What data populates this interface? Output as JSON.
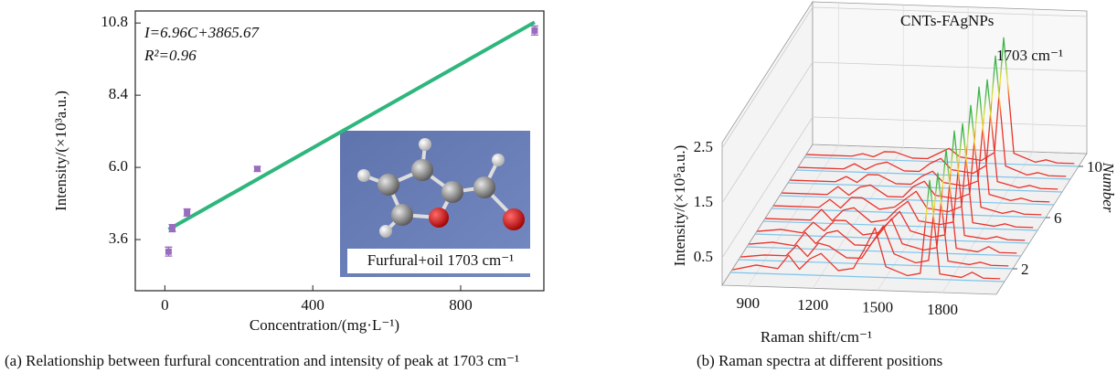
{
  "chart_data": [
    {
      "type": "scatter",
      "x": [
        10,
        20,
        60,
        250,
        1000
      ],
      "values": [
        3.2,
        3.98,
        4.5,
        5.95,
        10.55
      ],
      "errors": [
        0.15,
        0.12,
        0.12,
        0.08,
        0.15
      ],
      "color": "#9a6cc0",
      "fit": {
        "x": [
          10,
          1000
        ],
        "values": [
          3.935,
          10.826
        ],
        "color": "#2eb67d"
      },
      "xlim": [
        -80,
        1025
      ],
      "xticks": [
        0,
        400,
        800
      ],
      "ylim": [
        1.9,
        11.2
      ],
      "yticks": [
        3.6,
        {
          "value": 6,
          "label": "6.0"
        },
        8.4,
        10.8
      ],
      "xlabel": "Concentration/(mg·L⁻¹)",
      "ylabel": "Intensity/(×10³a.u.)",
      "annotations": [
        "I=6.96C+3865.67",
        "R²=0.96"
      ],
      "inset_label": "Furfural+oil 1703 cm⁻¹",
      "caption": "(a) Relationship between furfural concentration and intensity of peak at 1703 cm⁻¹"
    },
    {
      "type": "waterfall",
      "title": "CNTs-FAgNPs",
      "annotation": "1703 cm⁻¹",
      "x": [
        790,
        900,
        1000,
        1050,
        1100,
        1150,
        1200,
        1280,
        1350,
        1400,
        1450,
        1500,
        1600,
        1660,
        1703,
        1750,
        1850,
        1900,
        1950,
        2030
      ],
      "depth": [
        1,
        2,
        3,
        4,
        5,
        6,
        7,
        8,
        9,
        10
      ],
      "series": [
        {
          "values": [
            0.05,
            0.15,
            0.1,
            0.35,
            0.1,
            0.3,
            0.4,
            0.1,
            0.15,
            0.5,
            0.9,
            0.2,
            0.05,
            0.1,
            1.8,
            0.1,
            0.05,
            0.15,
            0.05,
            0.05
          ]
        },
        {
          "values": [
            0.05,
            0.1,
            0.1,
            0.3,
            0.1,
            0.35,
            0.3,
            0.1,
            0.1,
            0.4,
            0.7,
            0.2,
            0.05,
            0.1,
            1.7,
            0.1,
            0.05,
            0.1,
            0.05,
            0.05
          ]
        },
        {
          "values": [
            0.05,
            0.1,
            0.05,
            0.3,
            0.1,
            0.3,
            0.35,
            0.1,
            0.1,
            0.35,
            0.6,
            0.15,
            0.05,
            0.1,
            1.9,
            0.1,
            0.05,
            0.15,
            0.05,
            0.05
          ]
        },
        {
          "values": [
            0.05,
            0.1,
            0.05,
            0.25,
            0.1,
            0.3,
            0.3,
            0.05,
            0.1,
            0.3,
            0.5,
            0.15,
            0.05,
            0.1,
            2.0,
            0.1,
            0.05,
            0.1,
            0.05,
            0.05
          ]
        },
        {
          "values": [
            0.05,
            0.05,
            0.05,
            0.25,
            0.05,
            0.25,
            0.3,
            0.05,
            0.1,
            0.3,
            0.45,
            0.1,
            0.05,
            0.1,
            1.9,
            0.1,
            0.05,
            0.1,
            0.05,
            0.05
          ]
        },
        {
          "values": [
            0.05,
            0.05,
            0.05,
            0.2,
            0.05,
            0.25,
            0.25,
            0.05,
            0.1,
            0.25,
            0.4,
            0.1,
            0.05,
            0.15,
            2.0,
            0.15,
            0.05,
            0.1,
            0.05,
            0.05
          ]
        },
        {
          "values": [
            0.05,
            0.05,
            0.05,
            0.2,
            0.05,
            0.2,
            0.25,
            0.05,
            0.05,
            0.25,
            0.35,
            0.1,
            0.05,
            0.15,
            2.1,
            0.15,
            0.05,
            0.1,
            0.05,
            0.05
          ]
        },
        {
          "values": [
            0.05,
            0.05,
            0.05,
            0.15,
            0.05,
            0.2,
            0.2,
            0.05,
            0.05,
            0.2,
            0.3,
            0.1,
            0.05,
            0.15,
            2.0,
            0.15,
            0.05,
            0.1,
            0.05,
            0.05
          ]
        },
        {
          "values": [
            0.05,
            0.05,
            0.05,
            0.15,
            0.05,
            0.15,
            0.2,
            0.05,
            0.05,
            0.2,
            0.3,
            0.1,
            0.05,
            0.2,
            2.2,
            0.2,
            0.05,
            0.1,
            0.05,
            0.05
          ]
        },
        {
          "values": [
            0.05,
            0.05,
            0.05,
            0.1,
            0.05,
            0.15,
            0.15,
            0.05,
            0.05,
            0.15,
            0.25,
            0.1,
            0.05,
            0.2,
            2.3,
            0.2,
            0.05,
            0.1,
            0.05,
            0.05
          ]
        }
      ],
      "color": "#e8342c",
      "peak_color": "#3fb44a",
      "baseline_color": "#7fc4ea",
      "xlim": [
        780,
        2050
      ],
      "xticks": [
        900,
        1200,
        1500,
        1800
      ],
      "zlim": [
        0,
        2.6
      ],
      "zticks": [
        0.5,
        1.5,
        2.5
      ],
      "depthlim": [
        0,
        11
      ],
      "depthticks": [
        2,
        6,
        10
      ],
      "xlabel": "Raman shift/cm⁻¹",
      "zlabel": "Intensity/(×10⁵a.u.)",
      "depthlabel": "Number",
      "caption": "(b) Raman spectra at different positions"
    }
  ]
}
